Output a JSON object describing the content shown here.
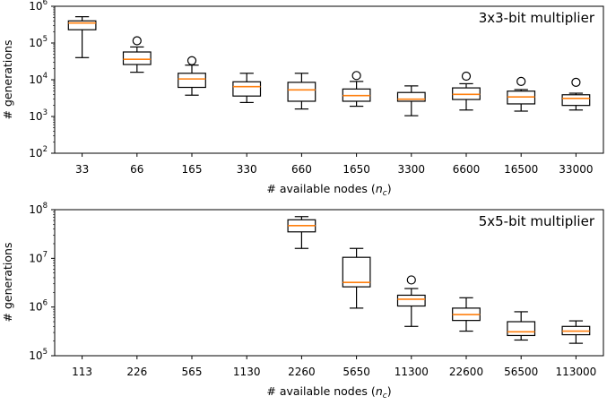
{
  "colors": {
    "box": "#000000",
    "median": "#ff7f0e",
    "background": "#ffffff"
  },
  "chart_data": [
    {
      "type": "box",
      "title": "3x3-bit multiplier",
      "xlabel": "# available nodes",
      "xlabel_math": "n",
      "xlabel_math_sub": "c",
      "ylabel": "# generations",
      "yscale": "log",
      "ylim": [
        100,
        1000000
      ],
      "yticks": [
        {
          "value": 100,
          "base": "10",
          "exp": "2"
        },
        {
          "value": 1000,
          "base": "10",
          "exp": "3"
        },
        {
          "value": 10000,
          "base": "10",
          "exp": "4"
        },
        {
          "value": 100000,
          "base": "10",
          "exp": "5"
        },
        {
          "value": 1000000,
          "base": "10",
          "exp": "6"
        }
      ],
      "categories": [
        "33",
        "66",
        "165",
        "330",
        "660",
        "1650",
        "3300",
        "6600",
        "16500",
        "33000"
      ],
      "boxes": [
        {
          "whislo": 40000,
          "q1": 230000,
          "med": 350000,
          "q3": 400000,
          "whishi": 520000,
          "fliers": []
        },
        {
          "whislo": 16000,
          "q1": 26000,
          "med": 36000,
          "q3": 57000,
          "whishi": 78000,
          "fliers": [
            115000
          ]
        },
        {
          "whislo": 3800,
          "q1": 6200,
          "med": 10500,
          "q3": 15000,
          "whishi": 25000,
          "fliers": [
            33000
          ]
        },
        {
          "whislo": 2400,
          "q1": 3600,
          "med": 6500,
          "q3": 8800,
          "whishi": 15000,
          "fliers": []
        },
        {
          "whislo": 1600,
          "q1": 2600,
          "med": 5300,
          "q3": 8500,
          "whishi": 15000,
          "fliers": []
        },
        {
          "whislo": 1900,
          "q1": 2600,
          "med": 3700,
          "q3": 5600,
          "whishi": 9000,
          "fliers": [
            13000
          ]
        },
        {
          "whislo": 1050,
          "q1": 2600,
          "med": 2950,
          "q3": 4500,
          "whishi": 6800,
          "fliers": []
        },
        {
          "whislo": 1500,
          "q1": 2900,
          "med": 4000,
          "q3": 6000,
          "whishi": 7800,
          "fliers": [
            12500
          ]
        },
        {
          "whislo": 1400,
          "q1": 2200,
          "med": 3400,
          "q3": 4900,
          "whishi": 5400,
          "fliers": [
            9000
          ]
        },
        {
          "whislo": 1500,
          "q1": 2000,
          "med": 3100,
          "q3": 3900,
          "whishi": 4300,
          "fliers": [
            8500
          ]
        }
      ]
    },
    {
      "type": "box",
      "title": "5x5-bit multiplier",
      "xlabel": "# available nodes",
      "xlabel_math": "n",
      "xlabel_math_sub": "c",
      "ylabel": "# generations",
      "yscale": "log",
      "ylim": [
        100000,
        100000000
      ],
      "yticks": [
        {
          "value": 100000,
          "base": "10",
          "exp": "5"
        },
        {
          "value": 1000000,
          "base": "10",
          "exp": "6"
        },
        {
          "value": 10000000,
          "base": "10",
          "exp": "7"
        },
        {
          "value": 100000000,
          "base": "10",
          "exp": "8"
        }
      ],
      "categories": [
        "113",
        "226",
        "565",
        "1130",
        "2260",
        "5650",
        "11300",
        "22600",
        "56500",
        "113000"
      ],
      "boxes": [
        null,
        null,
        null,
        null,
        {
          "whislo": 16000000,
          "q1": 35000000,
          "med": 47000000,
          "q3": 62000000,
          "whishi": 72000000,
          "fliers": []
        },
        {
          "whislo": 950000,
          "q1": 2600000,
          "med": 3200000,
          "q3": 10500000,
          "whishi": 16000000,
          "fliers": []
        },
        {
          "whislo": 400000,
          "q1": 1050000,
          "med": 1450000,
          "q3": 1750000,
          "whishi": 2400000,
          "fliers": [
            3600000
          ]
        },
        {
          "whislo": 320000,
          "q1": 530000,
          "med": 700000,
          "q3": 950000,
          "whishi": 1550000,
          "fliers": []
        },
        {
          "whislo": 210000,
          "q1": 260000,
          "med": 310000,
          "q3": 500000,
          "whishi": 800000,
          "fliers": []
        },
        {
          "whislo": 180000,
          "q1": 270000,
          "med": 320000,
          "q3": 400000,
          "whishi": 520000,
          "fliers": []
        }
      ]
    }
  ]
}
